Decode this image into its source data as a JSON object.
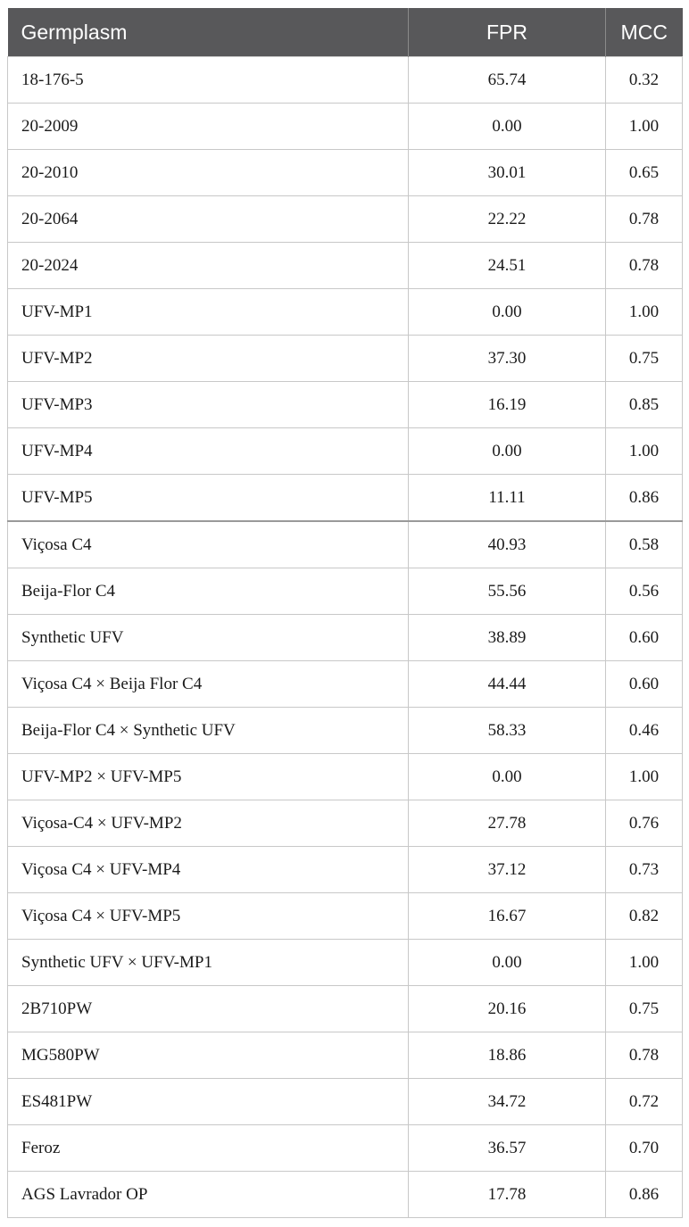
{
  "table": {
    "headers": [
      "Germplasm",
      "FPR",
      "MCC"
    ],
    "rows": [
      {
        "germplasm": "18-176-5",
        "fpr": "65.74",
        "mcc": "0.32"
      },
      {
        "germplasm": "20-2009",
        "fpr": "0.00",
        "mcc": "1.00"
      },
      {
        "germplasm": "20-2010",
        "fpr": "30.01",
        "mcc": "0.65"
      },
      {
        "germplasm": "20-2064",
        "fpr": "22.22",
        "mcc": "0.78"
      },
      {
        "germplasm": "20-2024",
        "fpr": "24.51",
        "mcc": "0.78"
      },
      {
        "germplasm": "UFV-MP1",
        "fpr": "0.00",
        "mcc": "1.00"
      },
      {
        "germplasm": "UFV-MP2",
        "fpr": "37.30",
        "mcc": "0.75"
      },
      {
        "germplasm": "UFV-MP3",
        "fpr": "16.19",
        "mcc": "0.85"
      },
      {
        "germplasm": "UFV-MP4",
        "fpr": "0.00",
        "mcc": "1.00"
      },
      {
        "germplasm": "UFV-MP5",
        "fpr": "11.11",
        "mcc": "0.86"
      },
      {
        "germplasm": "Viçosa C4",
        "fpr": "40.93",
        "mcc": "0.58"
      },
      {
        "germplasm": "Beija-Flor C4",
        "fpr": "55.56",
        "mcc": "0.56"
      },
      {
        "germplasm": "Synthetic UFV",
        "fpr": "38.89",
        "mcc": "0.60"
      },
      {
        "germplasm": "Viçosa C4 × Beija Flor C4",
        "fpr": "44.44",
        "mcc": "0.60"
      },
      {
        "germplasm": "Beija-Flor C4 × Synthetic UFV",
        "fpr": "58.33",
        "mcc": "0.46"
      },
      {
        "germplasm": "UFV-MP2 × UFV-MP5",
        "fpr": "0.00",
        "mcc": "1.00"
      },
      {
        "germplasm": "Viçosa-C4 × UFV-MP2",
        "fpr": "27.78",
        "mcc": "0.76"
      },
      {
        "germplasm": "Viçosa C4 × UFV-MP4",
        "fpr": "37.12",
        "mcc": "0.73"
      },
      {
        "germplasm": "Viçosa C4 × UFV-MP5",
        "fpr": "16.67",
        "mcc": "0.82"
      },
      {
        "germplasm": "Synthetic UFV × UFV-MP1",
        "fpr": "0.00",
        "mcc": "1.00"
      },
      {
        "germplasm": "2B710PW",
        "fpr": "20.16",
        "mcc": "0.75"
      },
      {
        "germplasm": "MG580PW",
        "fpr": "18.86",
        "mcc": "0.78"
      },
      {
        "germplasm": "ES481PW",
        "fpr": "34.72",
        "mcc": "0.72"
      },
      {
        "germplasm": "Feroz",
        "fpr": "36.57",
        "mcc": "0.70"
      },
      {
        "germplasm": "AGS Lavrador OP",
        "fpr": "17.78",
        "mcc": "0.86"
      }
    ]
  }
}
